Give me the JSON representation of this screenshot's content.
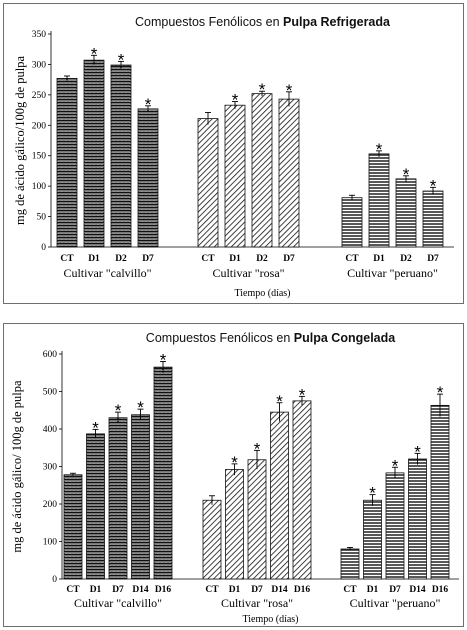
{
  "chart_data": [
    {
      "type": "bar",
      "title_prefix": "Compuestos Fenólicos  en ",
      "title_bold": "Pulpa Refrigerada",
      "ylabel": "mg de ácido gálico/100g de pulpa",
      "xlabel": "Tiempo  (días)",
      "ylim": [
        0,
        350
      ],
      "yticks": [
        0,
        50,
        100,
        150,
        200,
        250,
        300,
        350
      ],
      "grid": false,
      "groups": [
        {
          "name": "Cultivar \"calvillo\"",
          "pattern": "calvillo",
          "categories": [
            "CT",
            "D1",
            "D2",
            "D7"
          ],
          "values": [
            277,
            307,
            299,
            227
          ],
          "errors": [
            4,
            8,
            6,
            5
          ],
          "significant": [
            false,
            true,
            true,
            true
          ]
        },
        {
          "name": "Cultivar \"rosa\"",
          "pattern": "rosa",
          "categories": [
            "CT",
            "D1",
            "D2",
            "D7"
          ],
          "values": [
            211,
            233,
            252,
            243
          ],
          "errors": [
            10,
            6,
            4,
            12
          ],
          "significant": [
            false,
            true,
            true,
            true
          ]
        },
        {
          "name": "Cultivar \"peruano\"",
          "pattern": "peruano",
          "categories": [
            "CT",
            "D1",
            "D2",
            "D7"
          ],
          "values": [
            81,
            153,
            112,
            92
          ],
          "errors": [
            4,
            5,
            5,
            6
          ],
          "significant": [
            false,
            true,
            true,
            true
          ]
        }
      ]
    },
    {
      "type": "bar",
      "title_prefix": "Compuestos Fenólicos  en ",
      "title_bold": "Pulpa Congelada",
      "ylabel": "mg de ácido gálico/ 100g de pulpa",
      "xlabel": "Tiempo  (días)",
      "ylim": [
        0,
        600
      ],
      "yticks": [
        0,
        100,
        200,
        300,
        400,
        500,
        600
      ],
      "grid": false,
      "groups": [
        {
          "name": "Cultivar \"calvillo\"",
          "pattern": "calvillo",
          "categories": [
            "CT",
            "D1",
            "D7",
            "D14",
            "D16"
          ],
          "values": [
            278,
            387,
            430,
            438,
            565
          ],
          "errors": [
            4,
            12,
            15,
            15,
            15
          ],
          "significant": [
            false,
            true,
            true,
            true,
            true
          ]
        },
        {
          "name": "Cultivar \"rosa\"",
          "pattern": "rosa",
          "categories": [
            "CT",
            "D1",
            "D7",
            "D14",
            "D16"
          ],
          "values": [
            210,
            292,
            318,
            445,
            475
          ],
          "errors": [
            12,
            15,
            25,
            25,
            12
          ],
          "significant": [
            false,
            true,
            true,
            true,
            true
          ]
        },
        {
          "name": "Cultivar \"peruano\"",
          "pattern": "peruano",
          "categories": [
            "CT",
            "D1",
            "D7",
            "D14",
            "D16"
          ],
          "values": [
            80,
            210,
            283,
            320,
            463
          ],
          "errors": [
            4,
            15,
            15,
            15,
            30
          ],
          "significant": [
            false,
            true,
            true,
            true,
            true
          ]
        }
      ]
    }
  ]
}
